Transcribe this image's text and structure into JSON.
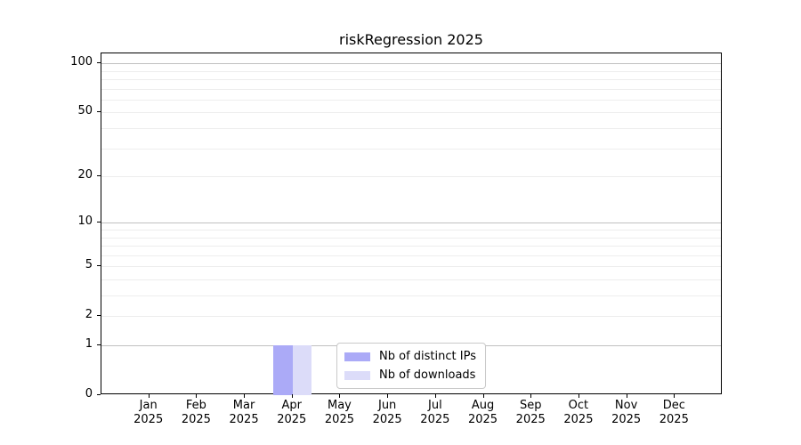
{
  "title": "riskRegression 2025",
  "chart_data": {
    "type": "bar",
    "title": "riskRegression 2025",
    "categories": [
      "Jan 2025",
      "Feb 2025",
      "Mar 2025",
      "Apr 2025",
      "May 2025",
      "Jun 2025",
      "Jul 2025",
      "Aug 2025",
      "Sep 2025",
      "Oct 2025",
      "Nov 2025",
      "Dec 2025"
    ],
    "series": [
      {
        "name": "Nb of distinct IPs",
        "color": "#abaaf7",
        "values": [
          0,
          0,
          0,
          1,
          0,
          0,
          0,
          0,
          0,
          0,
          0,
          0
        ]
      },
      {
        "name": "Nb of downloads",
        "color": "#dcdcf9",
        "values": [
          0,
          0,
          0,
          1,
          0,
          0,
          0,
          0,
          0,
          0,
          0,
          0
        ]
      }
    ],
    "xlabel": "",
    "ylabel": "",
    "yscale": "log1p",
    "ylim": [
      0,
      115
    ],
    "y_ticks": [
      100,
      50,
      20,
      10,
      5,
      2,
      1,
      0
    ],
    "y_major_gridlines": [
      1,
      10,
      100
    ],
    "y_minor_gridlines": [
      2,
      3,
      4,
      5,
      6,
      7,
      8,
      9,
      20,
      30,
      40,
      50,
      60,
      70,
      80,
      90
    ],
    "grid": true,
    "legend_position": "lower center"
  },
  "colors": {
    "background": "#ffffff",
    "axis": "#000000",
    "text": "#000000",
    "major_gridline": "#c0c0c0",
    "minor_gridline": "#ededed",
    "distinct_ips_bar": "#abaaf7",
    "downloads_bar": "#dcdcf9",
    "legend_border": "#c9c9c9"
  }
}
